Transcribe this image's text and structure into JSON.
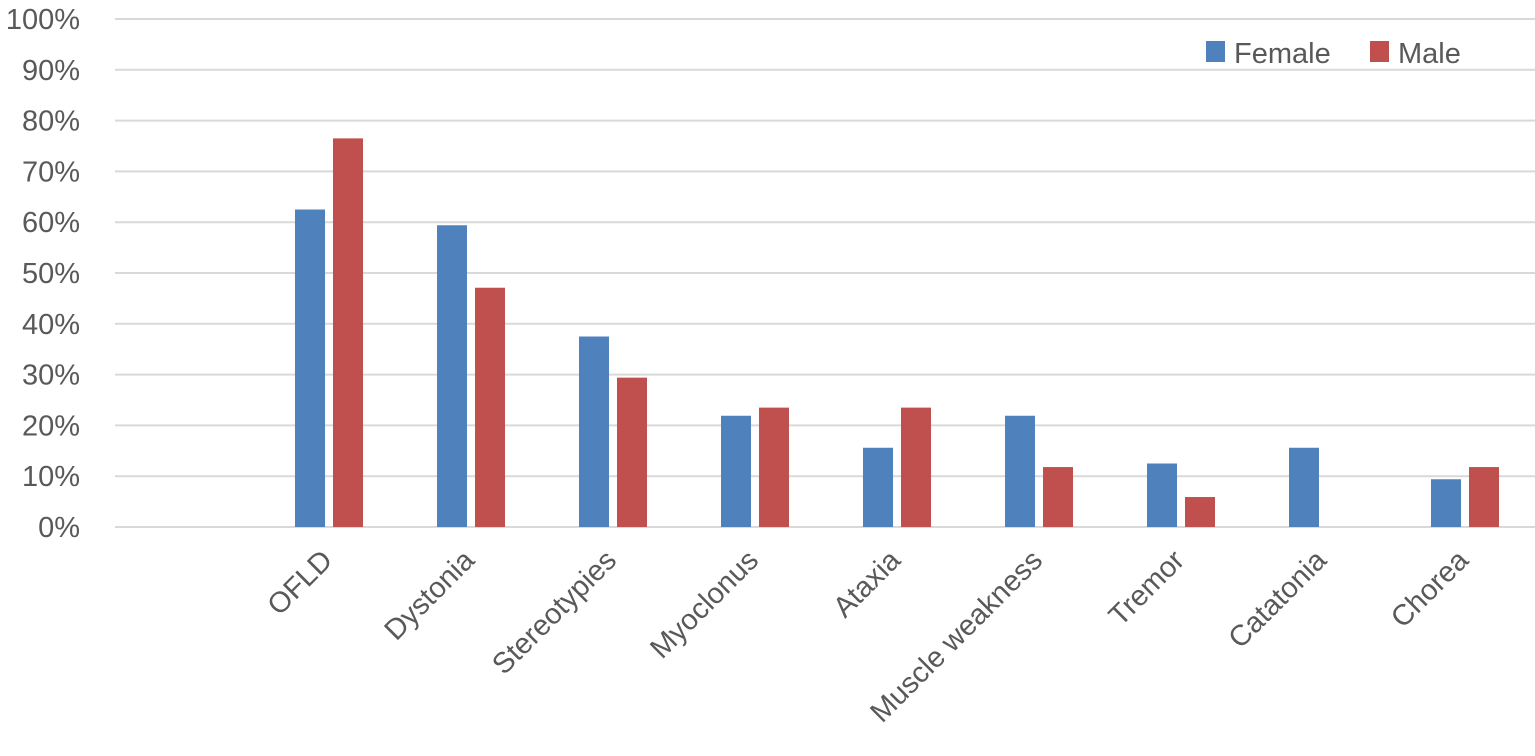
{
  "chart_data": {
    "type": "bar",
    "title": "",
    "xlabel": "",
    "ylabel": "",
    "categories": [
      "OFLD",
      "Dystonia",
      "Stereotypies",
      "Myoclonus",
      "Ataxia",
      "Muscle weakness",
      "Tremor",
      "Catatonia",
      "Chorea"
    ],
    "series": [
      {
        "name": "Female",
        "color": "#4f81bd",
        "values": [
          62.5,
          59.4,
          37.5,
          21.9,
          15.6,
          21.9,
          12.5,
          15.6,
          9.4
        ]
      },
      {
        "name": "Male",
        "color": "#c0504d",
        "values": [
          76.5,
          47.1,
          29.4,
          23.5,
          23.5,
          11.8,
          5.9,
          0,
          11.8
        ]
      }
    ],
    "ylim": [
      0,
      100
    ],
    "yticks": [
      "0%",
      "10%",
      "20%",
      "30%",
      "40%",
      "50%",
      "60%",
      "70%",
      "80%",
      "90%",
      "100%"
    ],
    "grid": true,
    "legend_position": "top-right"
  }
}
